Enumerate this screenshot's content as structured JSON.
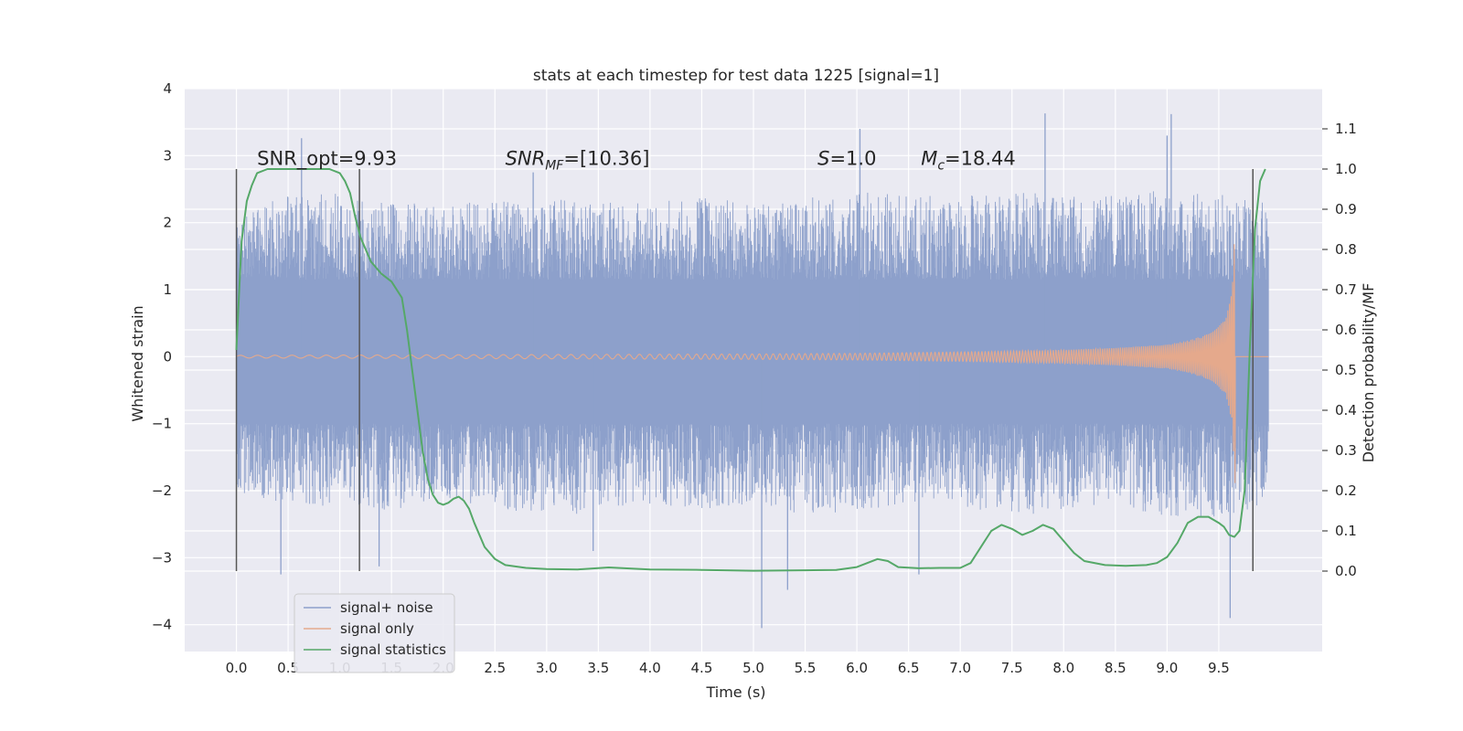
{
  "chart_data": {
    "type": "line",
    "title": "stats at each timestep for test data 1225 [signal=1]",
    "xlabel": "Time (s)",
    "ylabel": "Whitened strain",
    "y2label": "Detection probability/MF",
    "xlim": [
      -0.5,
      10.5
    ],
    "ylim": [
      -4.4,
      4.0
    ],
    "y2lim": [
      -0.2,
      1.2
    ],
    "xticks": [
      0.0,
      0.5,
      1.0,
      1.5,
      2.0,
      2.5,
      3.0,
      3.5,
      4.0,
      4.5,
      5.0,
      5.5,
      6.0,
      6.5,
      7.0,
      7.5,
      8.0,
      8.5,
      9.0,
      9.5
    ],
    "xtick_labels": [
      "0.0",
      "0.5",
      "1.0",
      "1.5",
      "2.0",
      "2.5",
      "3.0",
      "3.5",
      "4.0",
      "4.5",
      "5.0",
      "5.5",
      "6.0",
      "6.5",
      "7.0",
      "7.5",
      "8.0",
      "8.5",
      "9.0",
      "9.5"
    ],
    "yticks": [
      -4,
      -3,
      -2,
      -1,
      0,
      1,
      2,
      3,
      4
    ],
    "ytick_labels": [
      "−4",
      "−3",
      "−2",
      "−1",
      "0",
      "1",
      "2",
      "3",
      "4"
    ],
    "y2ticks": [
      0.0,
      0.1,
      0.2,
      0.3,
      0.4,
      0.5,
      0.6,
      0.7,
      0.8,
      0.9,
      1.0,
      1.1
    ],
    "y2tick_labels": [
      "0.0",
      "0.1",
      "0.2",
      "0.3",
      "0.4",
      "0.5",
      "0.6",
      "0.7",
      "0.8",
      "0.9",
      "1.0",
      "1.1"
    ],
    "grid": true,
    "legend_position": "bottom-left",
    "series": [
      {
        "name": "signal+ noise",
        "color": "#8da0cb",
        "axis": "left",
        "x_range": [
          0.0,
          9.98
        ],
        "envelope": {
          "t": [
            0.0,
            0.5,
            1.0,
            1.5,
            2.0,
            2.5,
            3.0,
            3.5,
            4.0,
            4.5,
            5.0,
            5.5,
            6.0,
            6.5,
            7.0,
            7.5,
            8.0,
            8.5,
            9.0,
            9.5,
            9.98
          ],
          "upper": [
            2.2,
            2.4,
            2.5,
            2.3,
            2.3,
            2.3,
            2.4,
            2.3,
            2.3,
            2.4,
            2.3,
            2.4,
            2.5,
            2.4,
            2.4,
            2.5,
            2.4,
            2.4,
            2.5,
            2.5,
            2.4
          ],
          "lower": [
            -2.0,
            -2.3,
            -2.2,
            -2.3,
            -2.1,
            -2.3,
            -2.3,
            -2.4,
            -2.2,
            -2.3,
            -2.2,
            -2.4,
            -2.3,
            -2.2,
            -2.3,
            -2.4,
            -2.3,
            -2.2,
            -2.4,
            -2.4,
            -2.2
          ]
        },
        "peaks": [
          {
            "x": 0.43,
            "y": -3.25
          },
          {
            "x": 0.63,
            "y": 3.26
          },
          {
            "x": 1.38,
            "y": -3.13
          },
          {
            "x": 2.87,
            "y": 2.75
          },
          {
            "x": 3.45,
            "y": -2.9
          },
          {
            "x": 5.08,
            "y": -4.05
          },
          {
            "x": 5.33,
            "y": -3.48
          },
          {
            "x": 6.03,
            "y": 3.4
          },
          {
            "x": 6.6,
            "y": -3.25
          },
          {
            "x": 7.82,
            "y": 3.63
          },
          {
            "x": 9.04,
            "y": 3.62
          },
          {
            "x": 9.0,
            "y": 3.3
          },
          {
            "x": 9.61,
            "y": -3.9
          }
        ]
      },
      {
        "name": "signal only",
        "color": "#e5a98c",
        "axis": "left",
        "x_range": [
          0.0,
          9.98
        ],
        "chirp_end": 9.66,
        "amplitude": {
          "t": [
            0.0,
            5.0,
            6.0,
            7.0,
            8.0,
            8.5,
            9.0,
            9.2,
            9.4,
            9.5,
            9.55,
            9.6,
            9.63,
            9.66
          ],
          "a": [
            0.02,
            0.04,
            0.05,
            0.07,
            0.1,
            0.13,
            0.18,
            0.24,
            0.34,
            0.45,
            0.55,
            0.75,
            1.1,
            2.0
          ]
        }
      },
      {
        "name": "signal statistics",
        "color": "#55a868",
        "axis": "right",
        "x": [
          0.0,
          0.05,
          0.1,
          0.15,
          0.2,
          0.3,
          0.4,
          0.5,
          0.6,
          0.7,
          0.8,
          0.9,
          1.0,
          1.05,
          1.1,
          1.15,
          1.2,
          1.3,
          1.4,
          1.5,
          1.6,
          1.65,
          1.7,
          1.75,
          1.8,
          1.85,
          1.9,
          1.95,
          2.0,
          2.05,
          2.1,
          2.15,
          2.2,
          2.25,
          2.3,
          2.4,
          2.5,
          2.6,
          2.8,
          3.0,
          3.3,
          3.6,
          4.0,
          4.5,
          5.0,
          5.5,
          5.8,
          6.0,
          6.1,
          6.2,
          6.3,
          6.4,
          6.6,
          6.8,
          7.0,
          7.1,
          7.2,
          7.3,
          7.4,
          7.5,
          7.6,
          7.7,
          7.8,
          7.9,
          8.0,
          8.1,
          8.2,
          8.4,
          8.6,
          8.8,
          8.9,
          9.0,
          9.1,
          9.2,
          9.3,
          9.4,
          9.5,
          9.55,
          9.6,
          9.65,
          9.7,
          9.75,
          9.8,
          9.85,
          9.9,
          9.95
        ],
        "values": [
          0.55,
          0.82,
          0.92,
          0.96,
          0.99,
          1.0,
          1.0,
          1.0,
          1.0,
          1.0,
          1.0,
          1.0,
          0.99,
          0.97,
          0.94,
          0.88,
          0.83,
          0.77,
          0.74,
          0.72,
          0.68,
          0.6,
          0.5,
          0.4,
          0.3,
          0.23,
          0.19,
          0.17,
          0.165,
          0.17,
          0.18,
          0.185,
          0.175,
          0.155,
          0.12,
          0.06,
          0.03,
          0.015,
          0.008,
          0.005,
          0.004,
          0.009,
          0.004,
          0.003,
          0.001,
          0.002,
          0.003,
          0.01,
          0.02,
          0.03,
          0.025,
          0.01,
          0.007,
          0.008,
          0.008,
          0.02,
          0.06,
          0.1,
          0.115,
          0.105,
          0.09,
          0.1,
          0.115,
          0.105,
          0.075,
          0.045,
          0.025,
          0.015,
          0.013,
          0.015,
          0.02,
          0.035,
          0.07,
          0.12,
          0.135,
          0.135,
          0.12,
          0.11,
          0.09,
          0.085,
          0.1,
          0.2,
          0.55,
          0.85,
          0.97,
          1.0
        ]
      }
    ],
    "vertical_markers": [
      {
        "x": 0.0,
        "y_range": [
          -3.2,
          2.8
        ]
      },
      {
        "x": 1.19,
        "y_range": [
          -3.2,
          2.8
        ]
      },
      {
        "x": 9.83,
        "y_range": [
          -3.2,
          2.8
        ]
      }
    ],
    "annotations": [
      {
        "text": "SNR_opt=9.93",
        "x": 0.2,
        "y": 2.86
      },
      {
        "base": "SNR",
        "sub": "MF",
        "suffix": "=[10.36]",
        "x": 2.6,
        "y": 2.86
      },
      {
        "base": "S",
        "sub": "",
        "suffix": "=1.0",
        "x": 5.62,
        "y": 2.86
      },
      {
        "base": "M",
        "sub": "c",
        "suffix": "=18.44",
        "x": 6.62,
        "y": 2.86
      }
    ]
  }
}
